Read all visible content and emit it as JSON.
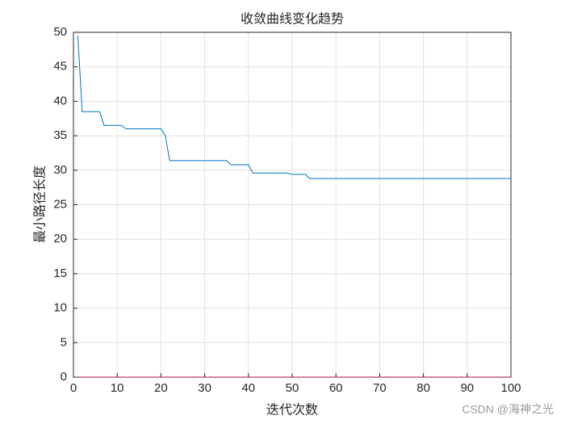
{
  "chart_data": {
    "type": "line",
    "title": "收敛曲线变化趋势",
    "x_label": "迭代次数",
    "y_label": "最小路径长度",
    "watermark": "CSDN @海神之光",
    "x": [
      1,
      2,
      3,
      4,
      5,
      6,
      7,
      8,
      9,
      10,
      11,
      12,
      13,
      14,
      15,
      16,
      17,
      18,
      19,
      20,
      21,
      22,
      23,
      24,
      25,
      26,
      27,
      28,
      29,
      30,
      31,
      32,
      33,
      34,
      35,
      36,
      37,
      38,
      39,
      40,
      41,
      42,
      43,
      44,
      45,
      46,
      47,
      48,
      49,
      50,
      51,
      52,
      53,
      54,
      55,
      56,
      57,
      58,
      59,
      60,
      61,
      62,
      63,
      64,
      65,
      66,
      67,
      68,
      69,
      70,
      71,
      72,
      73,
      74,
      75,
      76,
      77,
      78,
      79,
      80,
      81,
      82,
      83,
      84,
      85,
      86,
      87,
      88,
      89,
      90,
      91,
      92,
      93,
      94,
      95,
      96,
      97,
      98,
      99,
      100
    ],
    "series": [
      {
        "color": "#0072bd",
        "values": [
          49.5,
          38.5,
          38.5,
          38.5,
          38.5,
          38.5,
          36.5,
          36.5,
          36.5,
          36.5,
          36.5,
          36,
          36,
          36,
          36,
          36,
          36,
          36,
          36,
          36,
          35,
          31.4,
          31.4,
          31.4,
          31.4,
          31.4,
          31.4,
          31.4,
          31.4,
          31.4,
          31.4,
          31.4,
          31.4,
          31.4,
          31.4,
          30.8,
          30.8,
          30.8,
          30.8,
          30.8,
          29.6,
          29.6,
          29.6,
          29.6,
          29.6,
          29.6,
          29.6,
          29.6,
          29.6,
          29.4,
          29.4,
          29.4,
          29.4,
          28.8,
          28.8,
          28.8,
          28.8,
          28.8,
          28.8,
          28.8,
          28.8,
          28.8,
          28.8,
          28.8,
          28.8,
          28.8,
          28.8,
          28.8,
          28.8,
          28.8,
          28.8,
          28.8,
          28.8,
          28.8,
          28.8,
          28.8,
          28.8,
          28.8,
          28.8,
          28.8,
          28.8,
          28.8,
          28.8,
          28.8,
          28.8,
          28.8,
          28.8,
          28.8,
          28.8,
          28.8,
          28.8,
          28.8,
          28.8,
          28.8,
          28.8,
          28.8,
          28.8,
          28.8,
          28.8,
          28.8
        ]
      },
      {
        "color": "#a2142f",
        "values": [
          0,
          0,
          0,
          0,
          0,
          0,
          0,
          0,
          0,
          0,
          0,
          0,
          0,
          0,
          0,
          0,
          0,
          0,
          0,
          0,
          0,
          0,
          0,
          0,
          0,
          0,
          0,
          0,
          0,
          0,
          0,
          0,
          0,
          0,
          0,
          0,
          0,
          0,
          0,
          0,
          0,
          0,
          0,
          0,
          0,
          0,
          0,
          0,
          0,
          0,
          0,
          0,
          0,
          0,
          0,
          0,
          0,
          0,
          0,
          0,
          0,
          0,
          0,
          0,
          0,
          0,
          0,
          0,
          0,
          0,
          0,
          0,
          0,
          0,
          0,
          0,
          0,
          0,
          0,
          0,
          0,
          0,
          0,
          0,
          0,
          0,
          0,
          0,
          0,
          0,
          0,
          0,
          0,
          0,
          0,
          0,
          0,
          0,
          0,
          0
        ]
      }
    ],
    "xlim": [
      0,
      100
    ],
    "xticks": [
      0,
      10,
      20,
      30,
      40,
      50,
      60,
      70,
      80,
      90,
      100
    ],
    "ylim": [
      0,
      50
    ],
    "yticks": [
      0,
      5,
      10,
      15,
      20,
      25,
      30,
      35,
      40,
      45,
      50
    ],
    "grid": true
  }
}
